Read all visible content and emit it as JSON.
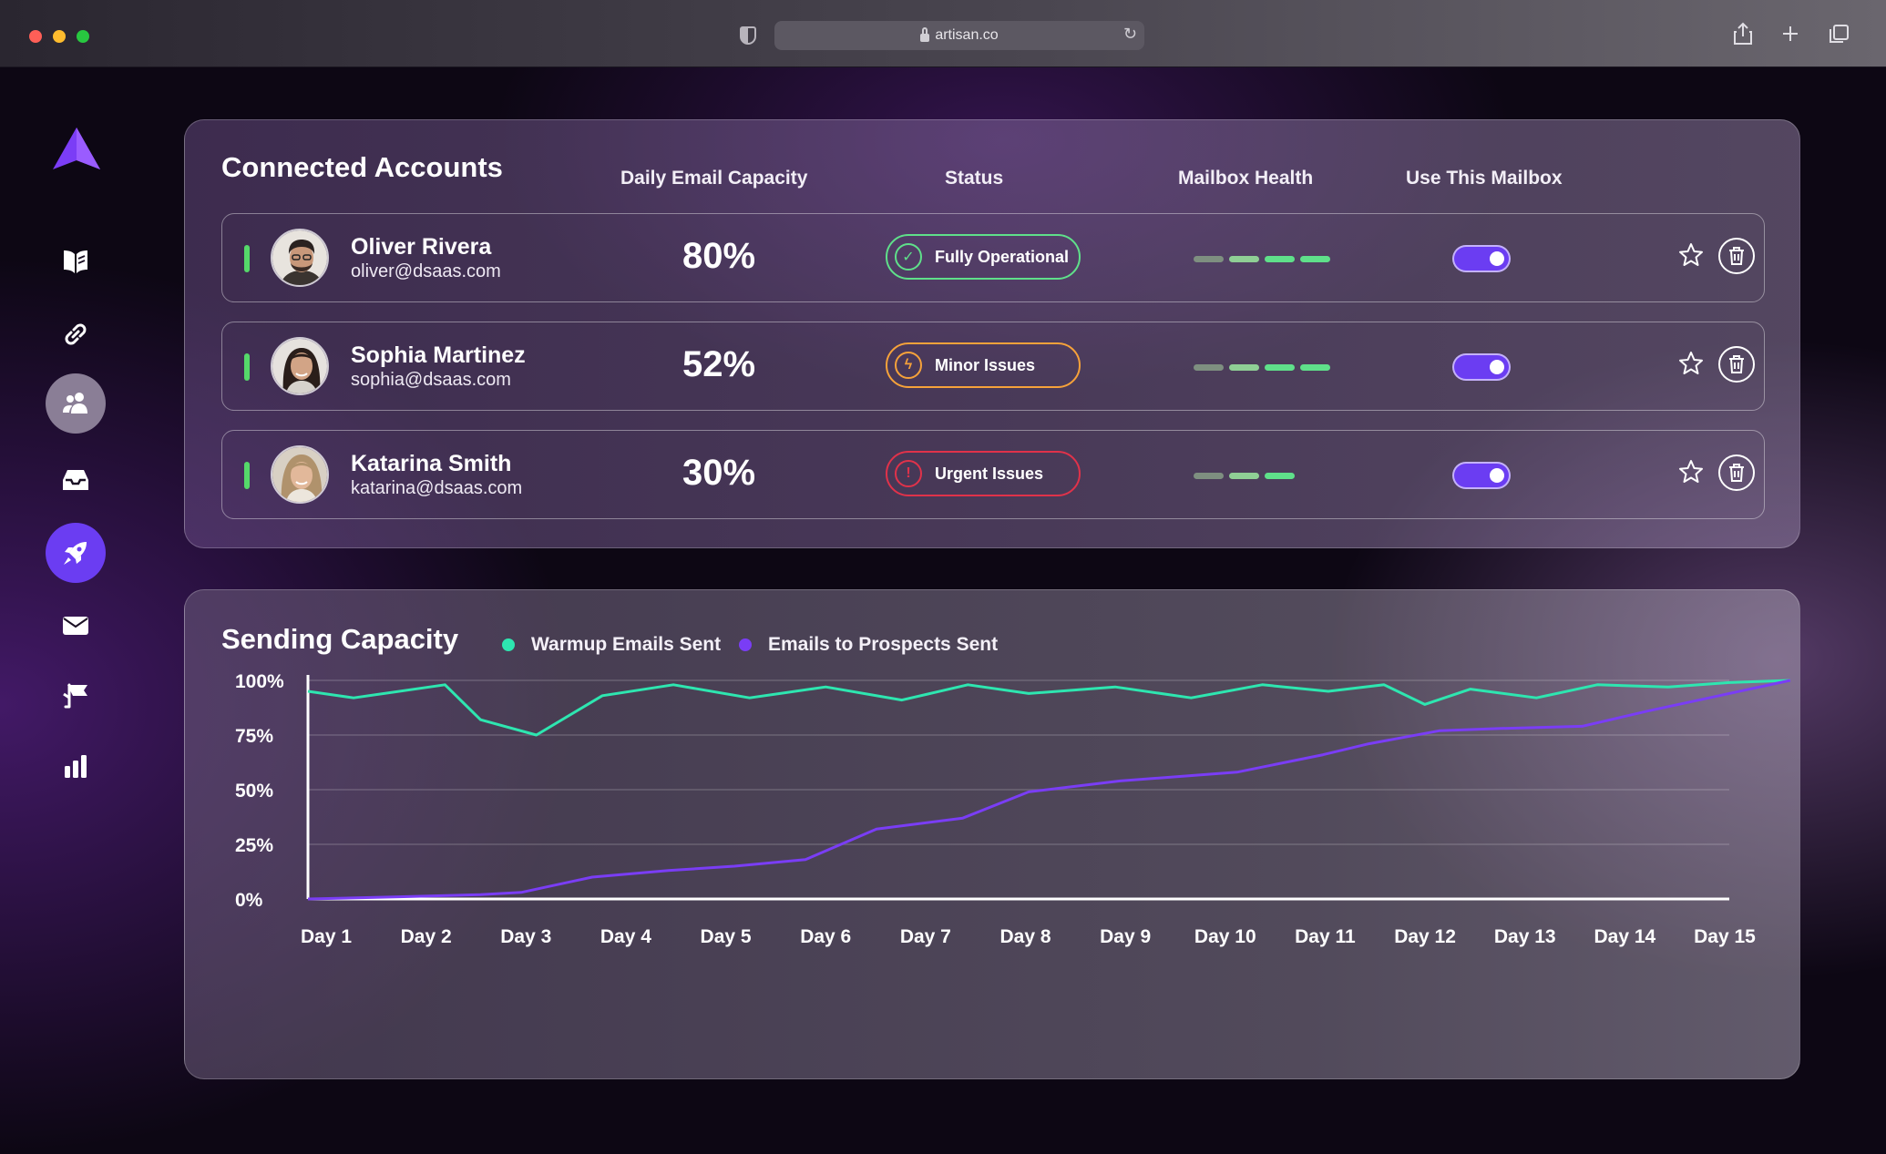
{
  "browser": {
    "url": "artisan.co",
    "colors": {
      "red": "#ff5f57",
      "yellow": "#febc2e",
      "green": "#28c840"
    }
  },
  "sidebar": {
    "items": [
      {
        "name": "logo",
        "icon": "triangle-logo-icon"
      },
      {
        "name": "book",
        "icon": "book-icon"
      },
      {
        "name": "link",
        "icon": "link-icon"
      },
      {
        "name": "users",
        "icon": "users-icon",
        "selected": "grey"
      },
      {
        "name": "inbox",
        "icon": "inbox-icon"
      },
      {
        "name": "rocket",
        "icon": "rocket-icon",
        "selected": "purple"
      },
      {
        "name": "mail",
        "icon": "mail-icon"
      },
      {
        "name": "megaphone",
        "icon": "megaphone-icon"
      },
      {
        "name": "analytics",
        "icon": "bar-chart-icon"
      }
    ]
  },
  "accounts": {
    "title": "Connected Accounts",
    "columns": {
      "capacity": "Daily Email Capacity",
      "status": "Status",
      "health": "Mailbox Health",
      "use": "Use This Mailbox"
    },
    "rows": [
      {
        "name": "Oliver Rivera",
        "email": "oliver@dsaas.com",
        "capacity": "80%",
        "status": "Fully Operational",
        "status_color": "#5fe08a",
        "health_level": 4,
        "enabled": true
      },
      {
        "name": "Sophia Martinez",
        "email": "sophia@dsaas.com",
        "capacity": "52%",
        "status": "Minor Issues",
        "status_color": "#f6a23a",
        "health_level": 4,
        "enabled": true
      },
      {
        "name": "Katarina Smith",
        "email": "katarina@dsaas.com",
        "capacity": "30%",
        "status": "Urgent Issues",
        "status_color": "#e0324a",
        "health_level": 3,
        "enabled": true
      }
    ]
  },
  "sending": {
    "title": "Sending Capacity",
    "legend": [
      {
        "label": "Warmup Emails Sent",
        "color": "#2ee6b0"
      },
      {
        "label": "Emails to Prospects Sent",
        "color": "#7a3df5"
      }
    ]
  },
  "chart_data": {
    "type": "line",
    "title": "Sending Capacity",
    "xlabel": "",
    "ylabel": "",
    "ylim": [
      0,
      100
    ],
    "y_ticks": [
      "0%",
      "25%",
      "50%",
      "75%",
      "100%"
    ],
    "categories": [
      "Day 1",
      "Day 2",
      "Day 3",
      "Day 4",
      "Day 5",
      "Day 6",
      "Day 7",
      "Day 8",
      "Day 9",
      "Day 10",
      "Day 11",
      "Day 12",
      "Day 13",
      "Day 14",
      "Day 15"
    ],
    "series": [
      {
        "name": "Warmup Emails Sent",
        "color": "#2ee6b0",
        "x": [
          0,
          0.45,
          1.35,
          1.7,
          2.25,
          2.9,
          3.6,
          4.35,
          5.1,
          5.85,
          6.5,
          7.1,
          7.95,
          8.7,
          9.4,
          10.05,
          10.6,
          11.0,
          11.45,
          12.1,
          12.7,
          13.4,
          14.0,
          14.6
        ],
        "y": [
          95,
          92,
          98,
          82,
          75,
          93,
          98,
          92,
          97,
          91,
          98,
          94,
          97,
          92,
          98,
          95,
          98,
          89,
          96,
          92,
          98,
          97,
          99,
          100
        ]
      },
      {
        "name": "Emails to Prospects Sent",
        "color": "#7a3df5",
        "x": [
          0,
          0.9,
          1.7,
          2.1,
          2.8,
          3.55,
          4.2,
          4.9,
          5.6,
          6.45,
          7.1,
          8.0,
          9.15,
          10.0,
          10.45,
          11.15,
          11.75,
          12.55,
          13.2,
          13.9,
          14.6
        ],
        "y": [
          0,
          1,
          2,
          3,
          10,
          13,
          15,
          18,
          32,
          37,
          49,
          54,
          58,
          66,
          71,
          77,
          78,
          79,
          86,
          93,
          100
        ]
      }
    ]
  }
}
